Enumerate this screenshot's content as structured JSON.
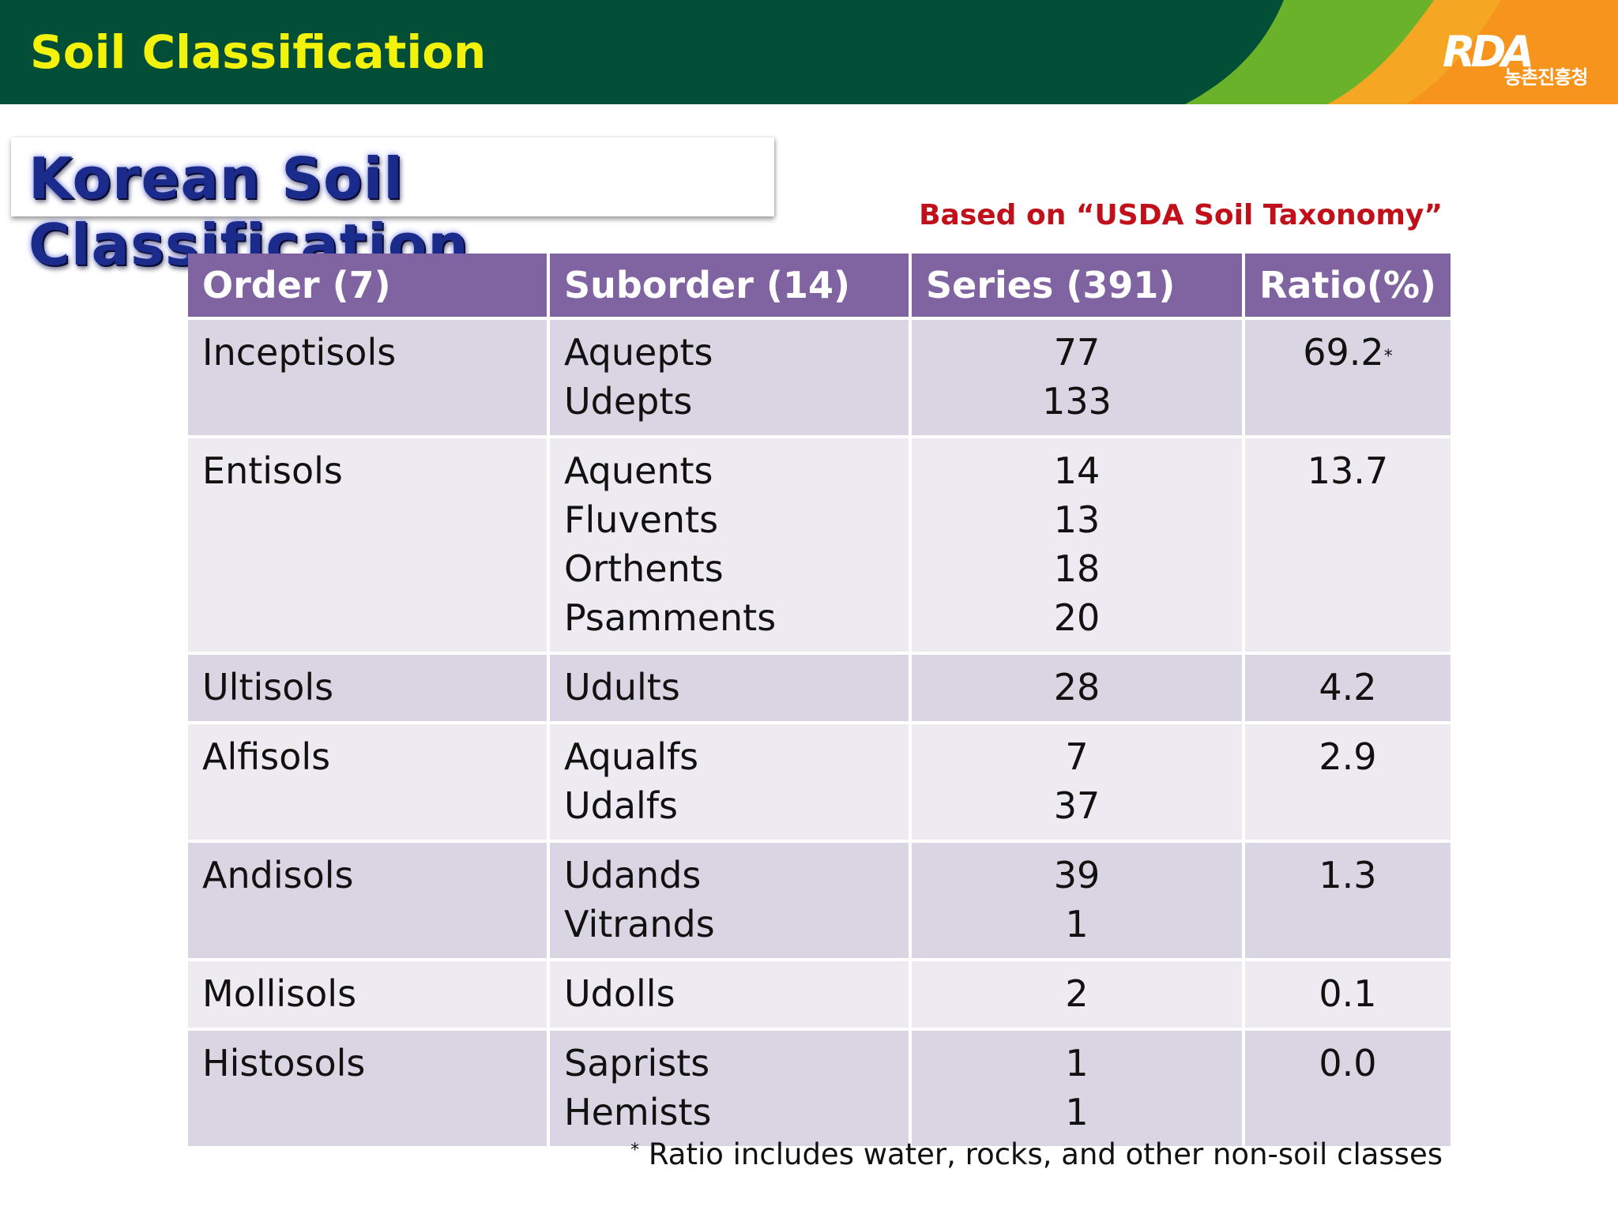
{
  "slide": {
    "title": "Soil Classification",
    "logo_text": "RDA",
    "logo_subtext": "농촌진흥청"
  },
  "subtitle": "Korean Soil Classification",
  "basis_note": "Based on “USDA Soil Taxonomy”",
  "table": {
    "headers": [
      "Order (7)",
      "Suborder (14)",
      "Series (391)",
      "Ratio(%)"
    ],
    "rows": [
      {
        "order": "Inceptisols",
        "suborders": [
          "Aquepts",
          "Udepts"
        ],
        "series": [
          "77",
          "133"
        ],
        "ratio": "69.2",
        "ratio_mark": "*"
      },
      {
        "order": "Entisols",
        "suborders": [
          "Aquents",
          "Fluvents",
          "Orthents",
          "Psamments"
        ],
        "series": [
          "14",
          "13",
          "18",
          "20"
        ],
        "ratio": "13.7",
        "ratio_mark": ""
      },
      {
        "order": "Ultisols",
        "suborders": [
          "Udults"
        ],
        "series": [
          "28"
        ],
        "ratio": "4.2",
        "ratio_mark": ""
      },
      {
        "order": "Alfisols",
        "suborders": [
          "Aqualfs",
          "Udalfs"
        ],
        "series": [
          "7",
          "37"
        ],
        "ratio": "2.9",
        "ratio_mark": ""
      },
      {
        "order": "Andisols",
        "suborders": [
          "Udands",
          "Vitrands"
        ],
        "series": [
          "39",
          "1"
        ],
        "ratio": "1.3",
        "ratio_mark": ""
      },
      {
        "order": "Mollisols",
        "suborders": [
          "Udolls"
        ],
        "series": [
          "2"
        ],
        "ratio": "0.1",
        "ratio_mark": ""
      },
      {
        "order": "Histosols",
        "suborders": [
          "Saprists",
          "Hemists"
        ],
        "series": [
          "1",
          "1"
        ],
        "ratio": "0.0",
        "ratio_mark": ""
      }
    ]
  },
  "footnote": {
    "mark": "*",
    "text": " Ratio includes water, rocks, and other non-soil classes"
  },
  "colors": {
    "header_green": "#034e36",
    "accent_lightgreen": "#69b22a",
    "accent_orange": "#f5a623",
    "title_yellow": "#f2f20a",
    "table_header": "#8064a2",
    "row_dark": "#d9d5e2",
    "row_light": "#edebf1",
    "note_red": "#c0101a"
  }
}
